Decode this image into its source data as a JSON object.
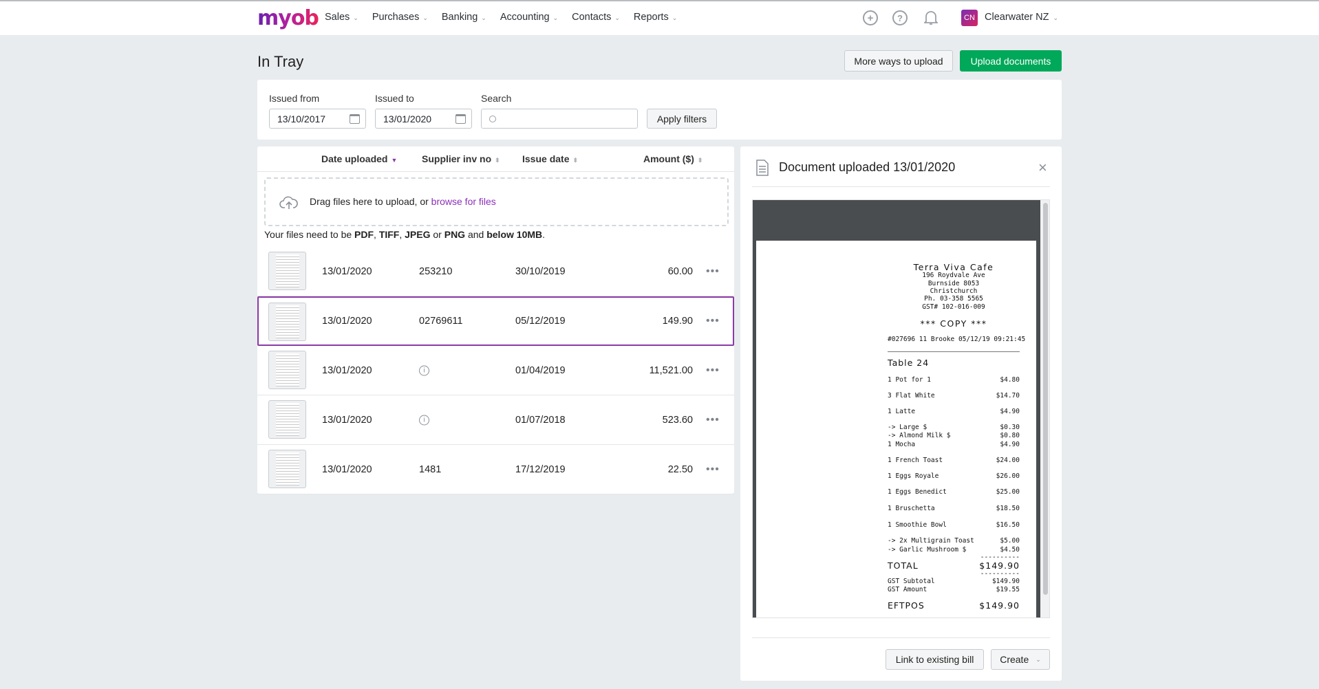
{
  "app": {
    "logo": "myob",
    "nav": [
      "Sales",
      "Purchases",
      "Banking",
      "Accounting",
      "Contacts",
      "Reports"
    ],
    "account": {
      "initials": "CN",
      "name": "Clearwater NZ"
    }
  },
  "page": {
    "title": "In Tray",
    "more_ways_label": "More ways to upload",
    "upload_label": "Upload documents"
  },
  "filters": {
    "issued_from_label": "Issued from",
    "issued_from": "13/10/2017",
    "issued_to_label": "Issued to",
    "issued_to": "13/01/2020",
    "search_label": "Search",
    "search_value": "",
    "apply_label": "Apply filters"
  },
  "table": {
    "headers": {
      "date_uploaded": "Date uploaded",
      "supplier_inv": "Supplier inv no",
      "issue_date": "Issue date",
      "amount": "Amount ($)"
    },
    "dropzone": {
      "text": "Drag files here to upload, or ",
      "link": "browse for files"
    },
    "note": {
      "p1": "Your files need to be ",
      "pdf": "PDF",
      "c1": ", ",
      "tiff": "TIFF",
      "c2": ", ",
      "jpeg": "JPEG",
      "or": " or ",
      "png": "PNG",
      "and": " and ",
      "size": "below 10MB",
      "end": "."
    },
    "rows": [
      {
        "uploaded": "13/01/2020",
        "supplier": "253210",
        "issue": "30/10/2019",
        "amount": "60.00",
        "info": false
      },
      {
        "uploaded": "13/01/2020",
        "supplier": "02769611",
        "issue": "05/12/2019",
        "amount": "149.90",
        "info": false,
        "selected": true
      },
      {
        "uploaded": "13/01/2020",
        "supplier": "",
        "issue": "01/04/2019",
        "amount": "11,521.00",
        "info": true
      },
      {
        "uploaded": "13/01/2020",
        "supplier": "",
        "issue": "01/07/2018",
        "amount": "523.60",
        "info": true
      },
      {
        "uploaded": "13/01/2020",
        "supplier": "1481",
        "issue": "17/12/2019",
        "amount": "22.50",
        "info": false
      }
    ]
  },
  "panel": {
    "title": "Document uploaded 13/01/2020",
    "link_label": "Link to existing bill",
    "create_label": "Create"
  },
  "receipt": [
    {
      "l": "Terra Viva Cafe",
      "c": 1,
      "big": 1
    },
    {
      "l": "196 Roydvale Ave",
      "c": 1
    },
    {
      "l": "Burnside 8053",
      "c": 1
    },
    {
      "l": "Christchurch",
      "c": 1
    },
    {
      "l": "Ph. 03-358 5565",
      "c": 1
    },
    {
      "l": "GST# 102-016-009",
      "c": 1
    },
    {
      "l": "*** COPY ***",
      "c": 1,
      "big": 1
    },
    {
      "l": "#027696 11 Brooke 05/12/19 09:21:45"
    },
    {
      "l": "Table 24",
      "big": 1
    },
    {
      "l": "1 Pot for 1",
      "r": "$4.80"
    },
    {
      "l": "3 Flat White",
      "r": "$14.70"
    },
    {
      "l": "1 Latte",
      "r": "$4.90"
    },
    {
      "l": "-> Large $",
      "r": "$0.30"
    },
    {
      "l": "-> Almond Milk $",
      "r": "$0.80"
    },
    {
      "l": "1 Mocha",
      "r": "$4.90"
    },
    {
      "l": "1 French Toast",
      "r": "$24.00"
    },
    {
      "l": "1 Eggs Royale",
      "r": "$26.00"
    },
    {
      "l": "1 Eggs Benedict",
      "r": "$25.00"
    },
    {
      "l": "1 Bruschetta",
      "r": "$18.50"
    },
    {
      "l": "1 Smoothie Bowl",
      "r": "$16.50"
    },
    {
      "l": "-> 2x Multigrain Toast",
      "r": "$5.00"
    },
    {
      "l": "-> Garlic Mushroom $",
      "r": "$4.50"
    },
    {
      "l": "",
      "r": "----------"
    },
    {
      "l": "TOTAL",
      "r": "$149.90",
      "big": 1
    },
    {
      "l": "",
      "r": "----------"
    },
    {
      "l": "GST Subtotal",
      "r": "$149.90"
    },
    {
      "l": "GST Amount",
      "r": "$19.55"
    },
    {
      "l": "EFTPOS",
      "r": "$149.90",
      "big": 1
    }
  ],
  "colors": {
    "accent": "#8b3aa6",
    "primary": "#00a85a",
    "link": "#8b2fb8"
  }
}
